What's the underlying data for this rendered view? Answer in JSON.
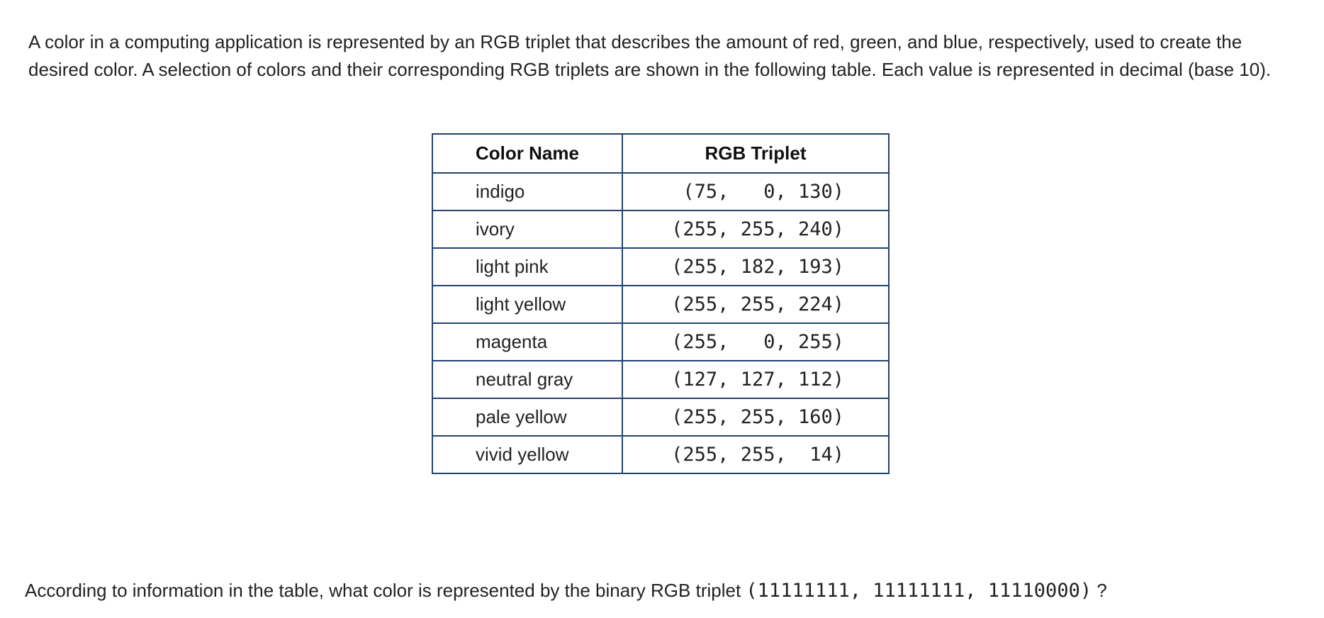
{
  "intro": {
    "text": "A color in a computing application is represented by an RGB triplet that describes the amount of red, green, and blue, respectively, used to create the desired color. A selection of colors and their corresponding RGB triplets are shown in the following table. Each value is represented in decimal (base 10)."
  },
  "table": {
    "headers": {
      "name": "Color Name",
      "rgb": "RGB Triplet"
    },
    "rows": [
      {
        "name": "indigo",
        "rgb": "(75,   0, 130)"
      },
      {
        "name": "ivory",
        "rgb": "(255, 255, 240)"
      },
      {
        "name": "light pink",
        "rgb": "(255, 182, 193)"
      },
      {
        "name": "light yellow",
        "rgb": "(255, 255, 224)"
      },
      {
        "name": "magenta",
        "rgb": "(255,   0, 255)"
      },
      {
        "name": "neutral gray",
        "rgb": "(127, 127, 112)"
      },
      {
        "name": "pale yellow",
        "rgb": "(255, 255, 160)"
      },
      {
        "name": "vivid yellow",
        "rgb": "(255, 255,  14)"
      }
    ]
  },
  "question": {
    "prefix": "According to information in the table, what color is represented by the binary RGB triplet",
    "triplet": "(11111111, 11111111, 11110000)",
    "suffix": "?"
  },
  "colors": {
    "table_border": "#22446e",
    "text": "#222222"
  }
}
